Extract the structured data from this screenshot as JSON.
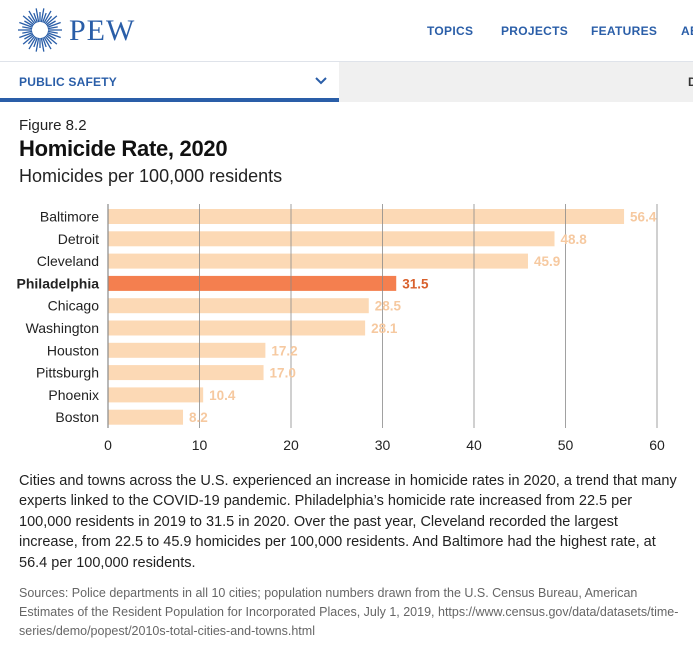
{
  "header": {
    "logo_text": "PEW",
    "nav": [
      {
        "label": "TOPICS"
      },
      {
        "label": "PROJECTS"
      },
      {
        "label": "FEATURES"
      },
      {
        "label": "AB"
      }
    ]
  },
  "subheader": {
    "section": "PUBLIC SAFETY",
    "right_partial": "D"
  },
  "figure": {
    "number": "Figure 8.2",
    "title": "Homicide Rate, 2020",
    "subtitle": "Homicides per 100,000 residents"
  },
  "colors": {
    "brand": "#2a5ea8",
    "bar": "#fcd9b5",
    "bar_highlight": "#f47f4f",
    "label_light": "#f6c9a0",
    "label_highlight": "#d9602c"
  },
  "chart_data": {
    "type": "bar",
    "orientation": "horizontal",
    "categories": [
      "Baltimore",
      "Detroit",
      "Cleveland",
      "Philadelphia",
      "Chicago",
      "Washington",
      "Houston",
      "Pittsburgh",
      "Phoenix",
      "Boston"
    ],
    "values": [
      56.4,
      48.8,
      45.9,
      31.5,
      28.5,
      28.1,
      17.2,
      17.0,
      10.4,
      8.2
    ],
    "value_labels": [
      "56.4",
      "48.8",
      "45.9",
      "31.5",
      "28.5",
      "28.1",
      "17.2",
      "17.0",
      "10.4",
      "8.2"
    ],
    "highlight": "Philadelphia",
    "xlim": [
      0,
      60
    ],
    "xticks": [
      0,
      10,
      20,
      30,
      40,
      50,
      60
    ],
    "grid": true
  },
  "body_text": "Cities and towns across the U.S. experienced an increase in homicide rates in 2020, a trend that many experts linked to the COVID-19 pandemic. Philadelphia’s homicide rate increased from 22.5 per 100,000 residents in 2019 to 31.5 in 2020. Over the past year, Cleveland recorded the largest increase, from 22.5 to 45.9 homicides per 100,000 residents. And Baltimore had the highest rate, at 56.4 per 100,000 residents.",
  "sources": "Sources: Police departments in all 10 cities; population numbers drawn from the U.S. Census Bureau, American Estimates of the Resident Population for Incorporated Places, July 1, 2019, https://www.census.gov/data/datasets/time-series/demo/popest/2010s-total-cities-and-towns.html"
}
